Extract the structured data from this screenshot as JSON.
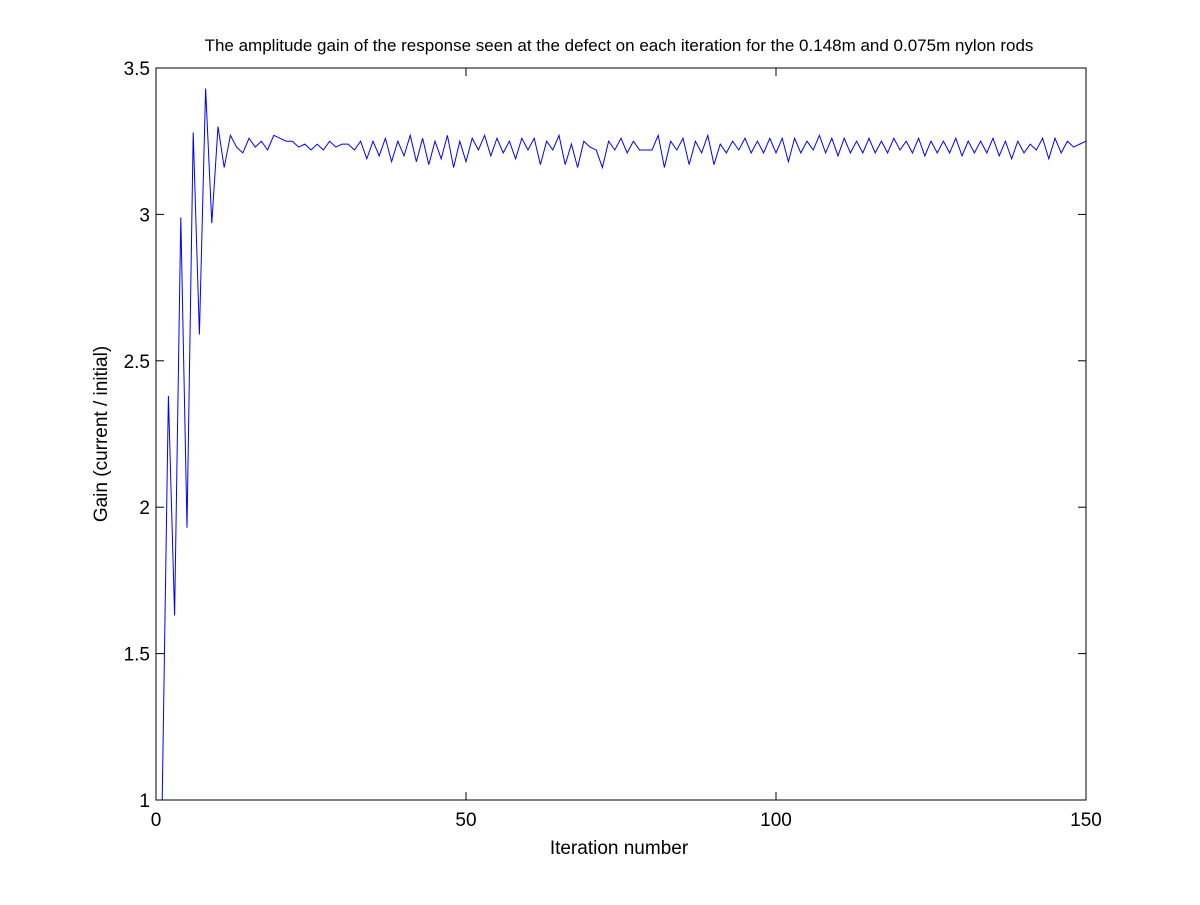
{
  "chart_data": {
    "type": "line",
    "title": "The amplitude gain of the response seen at the defect on each iteration for the 0.148m and 0.075m nylon rods",
    "xlabel": "Iteration number",
    "ylabel": "Gain (current / initial)",
    "xlim": [
      0,
      150
    ],
    "ylim": [
      1,
      3.5
    ],
    "xticks": [
      0,
      50,
      100,
      150
    ],
    "xtick_labels": [
      "0",
      "50",
      "100",
      "150"
    ],
    "yticks": [
      1,
      1.5,
      2,
      2.5,
      3,
      3.5
    ],
    "ytick_labels": [
      "1",
      "1.5",
      "2",
      "2.5",
      "3",
      "3.5"
    ],
    "grid": false,
    "line_color": "#0000ff",
    "series": [
      {
        "x": [
          1,
          2,
          3,
          4,
          5,
          6,
          7,
          8,
          9,
          10,
          11,
          12,
          13,
          14,
          15,
          16,
          17,
          18,
          19,
          20,
          21,
          22,
          23,
          24,
          25,
          26,
          27,
          28,
          29,
          30,
          31,
          32,
          33,
          34,
          35,
          36,
          37,
          38,
          39,
          40,
          41,
          42,
          43,
          44,
          45,
          46,
          47,
          48,
          49,
          50,
          51,
          52,
          53,
          54,
          55,
          56,
          57,
          58,
          59,
          60,
          61,
          62,
          63,
          64,
          65,
          66,
          67,
          68,
          69,
          70,
          71,
          72,
          73,
          74,
          75,
          76,
          77,
          78,
          79,
          80,
          81,
          82,
          83,
          84,
          85,
          86,
          87,
          88,
          89,
          90,
          91,
          92,
          93,
          94,
          95,
          96,
          97,
          98,
          99,
          100,
          101,
          102,
          103,
          104,
          105,
          106,
          107,
          108,
          109,
          110,
          111,
          112,
          113,
          114,
          115,
          116,
          117,
          118,
          119,
          120,
          121,
          122,
          123,
          124,
          125,
          126,
          127,
          128,
          129,
          130,
          131,
          132,
          133,
          134,
          135,
          136,
          137,
          138,
          139,
          140,
          141,
          142,
          143,
          144,
          145,
          146,
          147,
          148,
          149,
          150
        ],
        "values": [
          1.0,
          2.38,
          1.63,
          2.99,
          1.93,
          3.28,
          2.59,
          3.43,
          2.97,
          3.3,
          3.16,
          3.27,
          3.23,
          3.21,
          3.26,
          3.23,
          3.25,
          3.22,
          3.27,
          3.26,
          3.25,
          3.25,
          3.23,
          3.24,
          3.22,
          3.24,
          3.22,
          3.25,
          3.23,
          3.24,
          3.24,
          3.22,
          3.25,
          3.19,
          3.25,
          3.2,
          3.26,
          3.18,
          3.25,
          3.2,
          3.27,
          3.18,
          3.26,
          3.17,
          3.25,
          3.19,
          3.27,
          3.16,
          3.25,
          3.18,
          3.26,
          3.22,
          3.27,
          3.2,
          3.26,
          3.21,
          3.25,
          3.19,
          3.26,
          3.22,
          3.26,
          3.17,
          3.25,
          3.22,
          3.27,
          3.17,
          3.24,
          3.16,
          3.25,
          3.23,
          3.22,
          3.16,
          3.25,
          3.22,
          3.26,
          3.21,
          3.25,
          3.22,
          3.22,
          3.22,
          3.27,
          3.16,
          3.25,
          3.22,
          3.26,
          3.17,
          3.25,
          3.21,
          3.27,
          3.17,
          3.24,
          3.21,
          3.25,
          3.22,
          3.26,
          3.21,
          3.25,
          3.21,
          3.26,
          3.21,
          3.26,
          3.18,
          3.26,
          3.21,
          3.25,
          3.22,
          3.27,
          3.21,
          3.26,
          3.2,
          3.26,
          3.21,
          3.25,
          3.21,
          3.26,
          3.21,
          3.25,
          3.21,
          3.26,
          3.22,
          3.25,
          3.21,
          3.26,
          3.2,
          3.25,
          3.21,
          3.25,
          3.21,
          3.26,
          3.2,
          3.25,
          3.21,
          3.25,
          3.21,
          3.26,
          3.2,
          3.25,
          3.19,
          3.25,
          3.21,
          3.24,
          3.22,
          3.26,
          3.19,
          3.26,
          3.21,
          3.25,
          3.23,
          3.24,
          3.25
        ]
      }
    ]
  }
}
